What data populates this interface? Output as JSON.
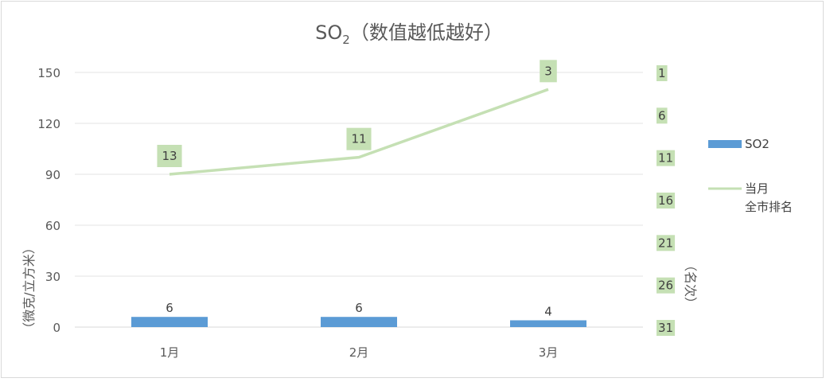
{
  "chart_data": {
    "type": "bar+line",
    "title_main": "SO",
    "title_sub": "2",
    "title_rest": "（数值越低越好）",
    "categories": [
      "1月",
      "2月",
      "3月"
    ],
    "y_left": {
      "label": "（微克/立方米）",
      "ticks": [
        0,
        30,
        60,
        90,
        120,
        150
      ],
      "range": [
        0,
        150
      ]
    },
    "y_right": {
      "label": "（名次）",
      "ticks": [
        1,
        6,
        11,
        16,
        21,
        26,
        31
      ],
      "range": [
        1,
        31
      ],
      "reversed": true
    },
    "series": [
      {
        "name": "SO2",
        "kind": "bar",
        "axis": "left",
        "values": [
          6,
          6,
          4
        ],
        "color": "#5b9bd5"
      },
      {
        "name": "当月\n全市排名",
        "kind": "line",
        "axis": "right",
        "values": [
          13,
          11,
          3
        ],
        "color": "#c5e0b4",
        "label_bg": "#c5e0b4"
      }
    ],
    "legend": {
      "position": "right",
      "items": [
        {
          "label": "SO2"
        },
        {
          "label_line1": "当月",
          "label_line2": "全市排名"
        }
      ]
    },
    "grid": true
  }
}
